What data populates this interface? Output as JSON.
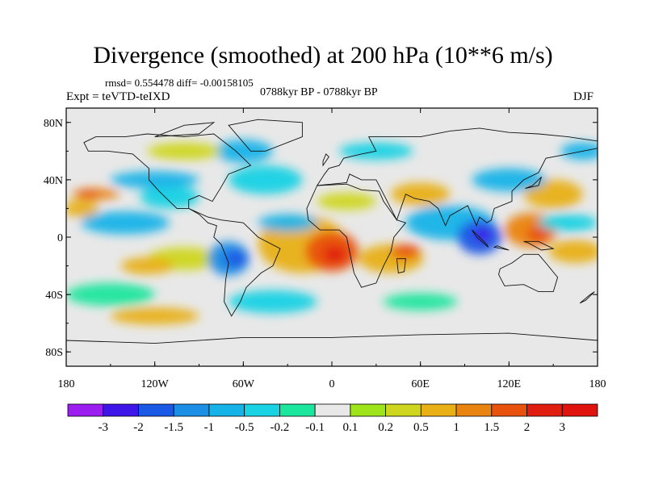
{
  "title": "Divergence (smoothed) at 200 hPa (10**6 m/s)",
  "stats": "rmsd= 0.554478 diff= -0.00158105",
  "period": "0788kyr BP - 0788kyr BP",
  "experiment": "Expt = teVTD-teIXD",
  "season": "DJF",
  "y_ticks": [
    "80N",
    "40N",
    "0",
    "40S",
    "80S"
  ],
  "x_ticks": [
    "180",
    "120W",
    "60W",
    "0",
    "60E",
    "120E",
    "180"
  ],
  "colorbar": {
    "labels": [
      "-3",
      "-2",
      "-1.5",
      "-1",
      "-0.5",
      "-0.2",
      "-0.1",
      "0.1",
      "0.2",
      "0.5",
      "1",
      "1.5",
      "2",
      "3"
    ],
    "colors": [
      "#9b1df0",
      "#3f16e8",
      "#1a58e6",
      "#1b8ee6",
      "#16b3e8",
      "#19d2e4",
      "#1be69e",
      "#e8e8e8",
      "#9de41a",
      "#cfd620",
      "#e8b014",
      "#ea8410",
      "#e8520c",
      "#e01e10",
      "#e0120e"
    ]
  }
}
